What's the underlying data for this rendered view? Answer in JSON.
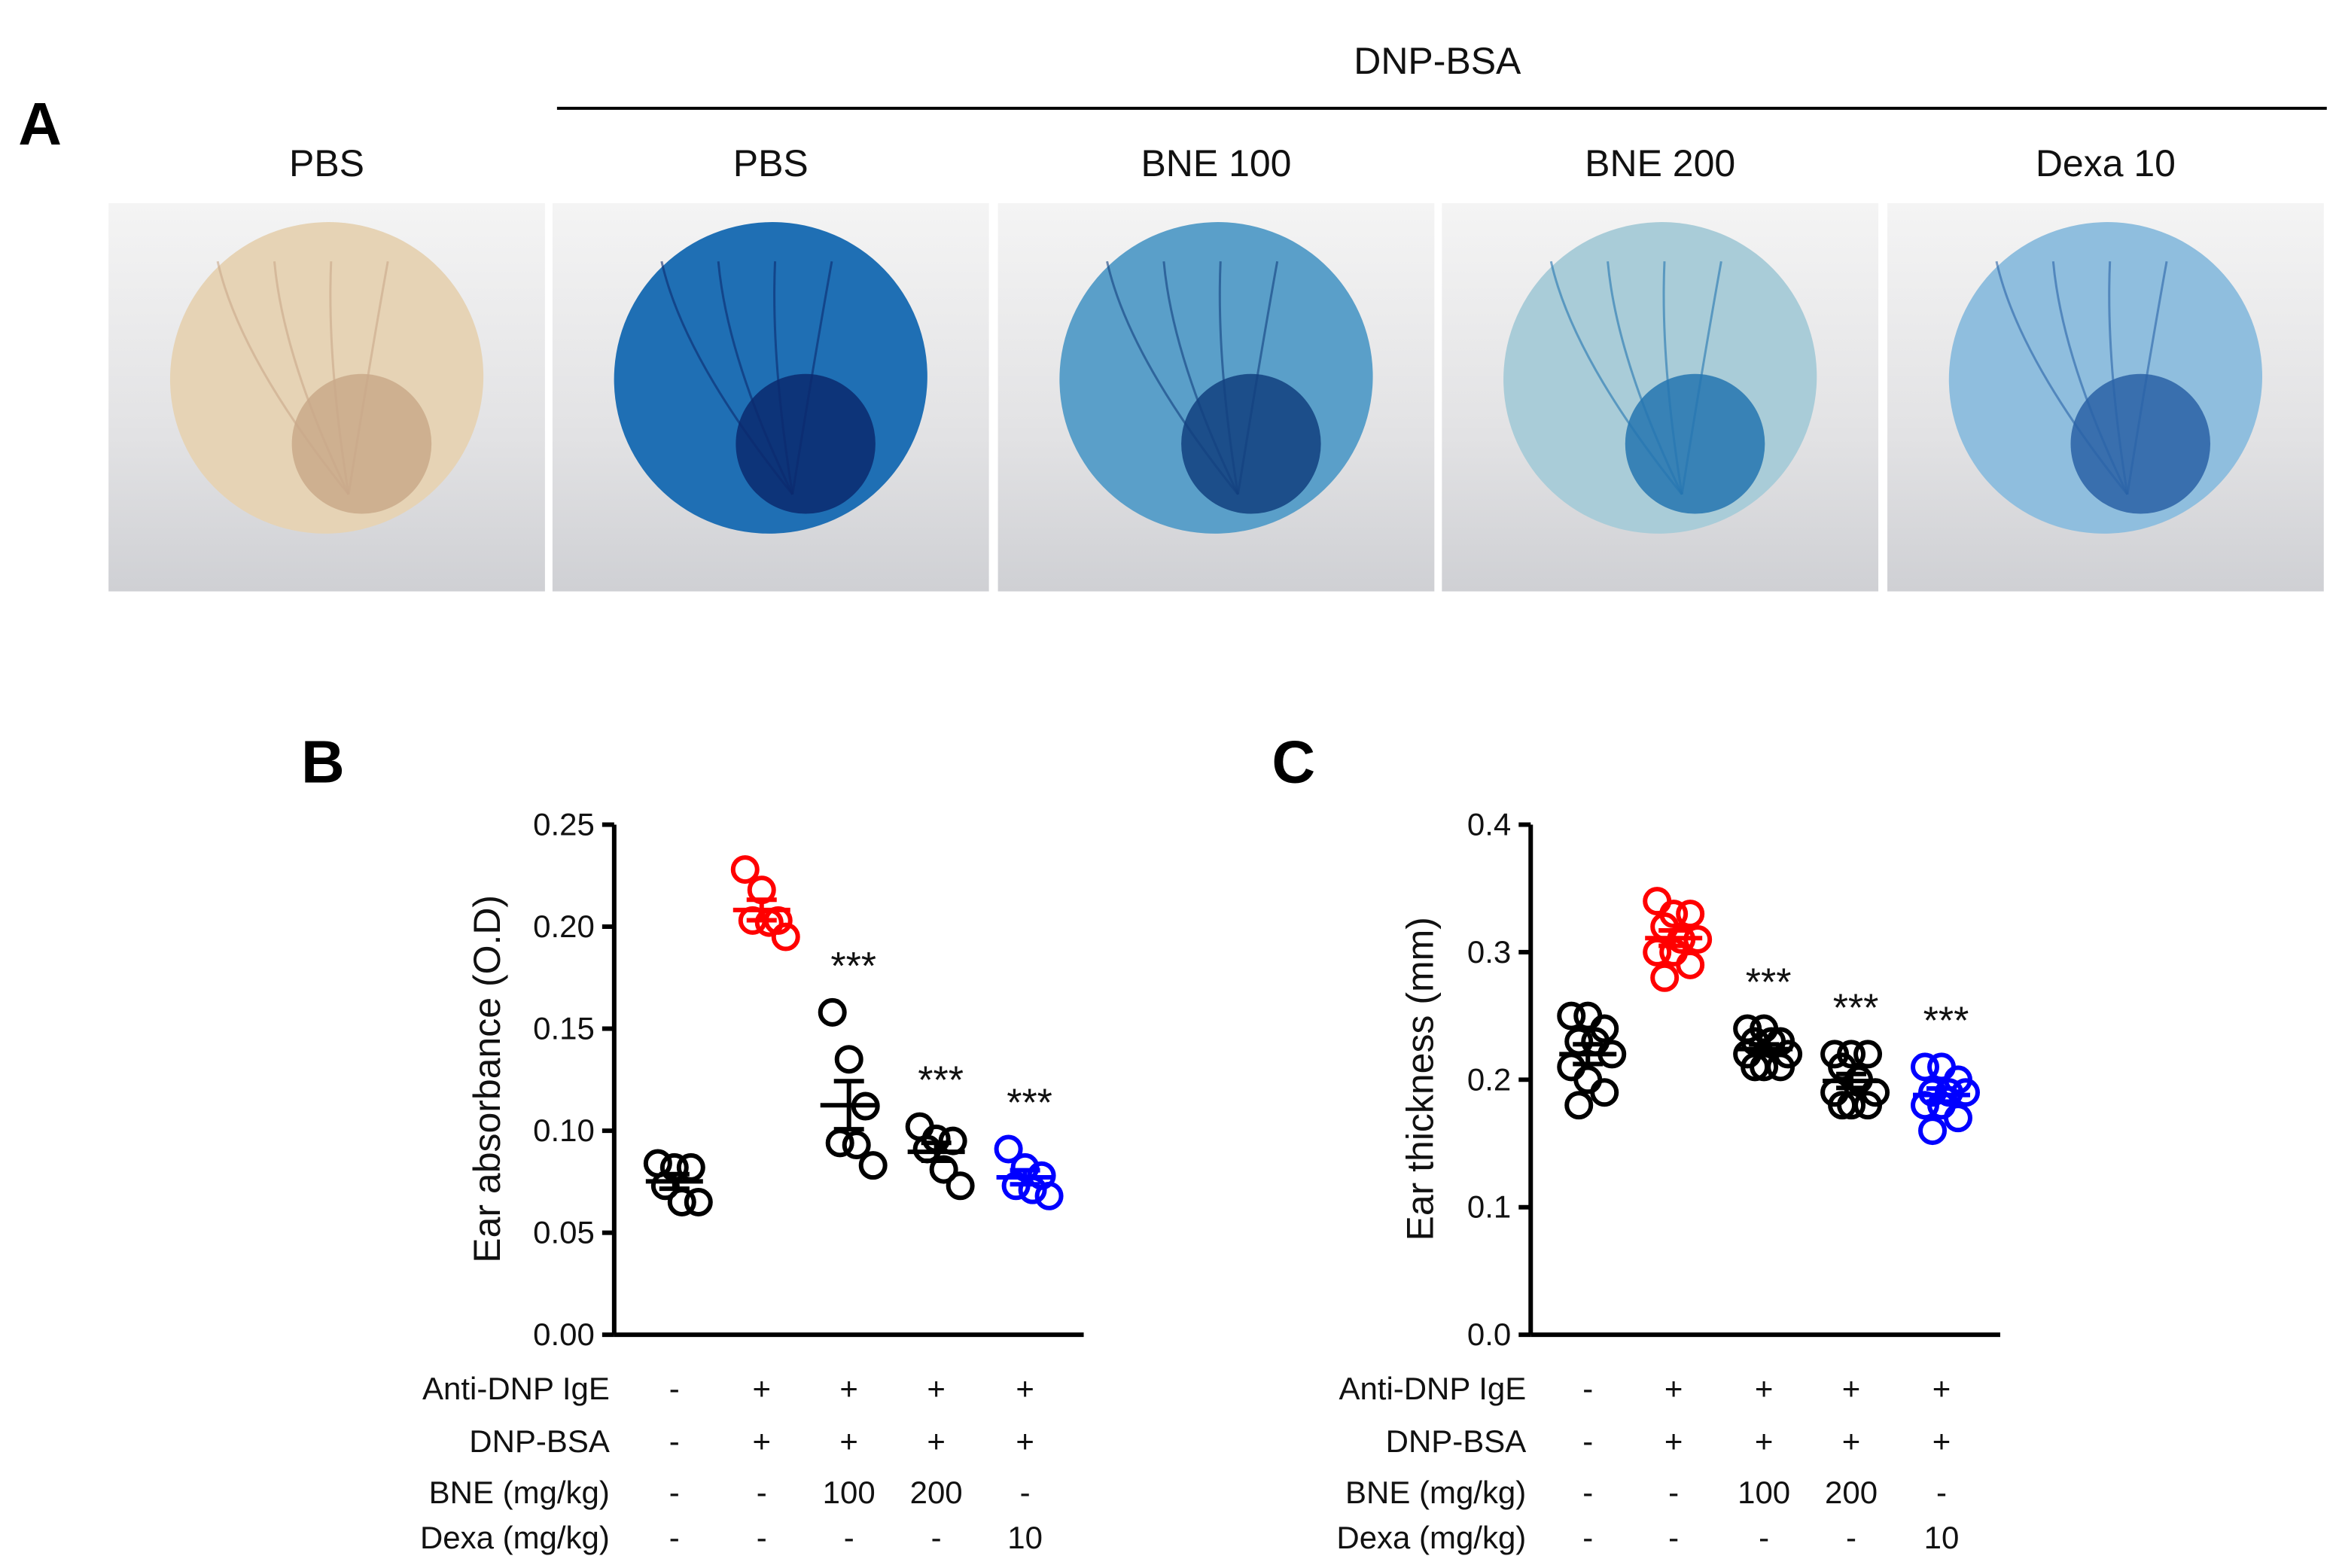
{
  "panel_a": {
    "letter": "A",
    "header": "DNP-BSA",
    "photos": [
      {
        "label": "PBS",
        "ear_color": "#e6d3b5",
        "stain": "#c9a98a"
      },
      {
        "label": "PBS",
        "ear_color": "#1f6fb4",
        "stain": "#0b2a6e"
      },
      {
        "label": "BNE 100",
        "ear_color": "#5a9fc9",
        "stain": "#12407f"
      },
      {
        "label": "BNE 200",
        "ear_color": "#a9ccd8",
        "stain": "#2474b0"
      },
      {
        "label": "Dexa 10",
        "ear_color": "#8fbede",
        "stain": "#2a62a6"
      }
    ]
  },
  "chart_data": [
    {
      "panel": "B",
      "type": "scatter",
      "ylabel": "Ear absorbance (O.D)",
      "ylim": [
        0,
        0.25
      ],
      "yticks": [
        "0.00",
        "0.05",
        "0.10",
        "0.15",
        "0.20",
        "0.25"
      ],
      "ytick_values": [
        0,
        0.05,
        0.1,
        0.15,
        0.2,
        0.25
      ],
      "groups": [
        {
          "color": "#000000",
          "annotation": "",
          "values": [
            0.084,
            0.082,
            0.082,
            0.073,
            0.065,
            0.065
          ]
        },
        {
          "color": "#ff0000",
          "annotation": "",
          "values": [
            0.228,
            0.218,
            0.203,
            0.203,
            0.202,
            0.195
          ]
        },
        {
          "color": "#000000",
          "annotation": "***",
          "values": [
            0.158,
            0.135,
            0.112,
            0.094,
            0.093,
            0.083
          ]
        },
        {
          "color": "#000000",
          "annotation": "***",
          "values": [
            0.102,
            0.096,
            0.095,
            0.091,
            0.081,
            0.073
          ]
        },
        {
          "color": "#0000ff",
          "annotation": "***",
          "values": [
            0.091,
            0.082,
            0.078,
            0.073,
            0.071,
            0.068
          ]
        }
      ],
      "conditions": [
        {
          "label": "Anti-DNP IgE",
          "values": [
            "-",
            "+",
            "+",
            "+",
            "+"
          ]
        },
        {
          "label": "DNP-BSA",
          "values": [
            "-",
            "+",
            "+",
            "+",
            "+"
          ]
        },
        {
          "label": "BNE (mg/kg)",
          "values": [
            "-",
            "-",
            "100",
            "200",
            "-"
          ]
        },
        {
          "label": "Dexa (mg/kg)",
          "values": [
            "-",
            "-",
            "-",
            "-",
            "10"
          ]
        }
      ]
    },
    {
      "panel": "C",
      "type": "scatter",
      "ylabel": "Ear thickness (mm)",
      "ylim": [
        0,
        0.4
      ],
      "yticks": [
        "0.0",
        "0.1",
        "0.2",
        "0.3",
        "0.4"
      ],
      "ytick_values": [
        0,
        0.1,
        0.2,
        0.3,
        0.4
      ],
      "groups": [
        {
          "color": "#000000",
          "annotation": "",
          "values": [
            0.25,
            0.25,
            0.24,
            0.23,
            0.23,
            0.22,
            0.21,
            0.2,
            0.19,
            0.18
          ]
        },
        {
          "color": "#ff0000",
          "annotation": "",
          "values": [
            0.34,
            0.33,
            0.33,
            0.32,
            0.31,
            0.31,
            0.3,
            0.3,
            0.29,
            0.28
          ]
        },
        {
          "color": "#000000",
          "annotation": "***",
          "values": [
            0.24,
            0.24,
            0.23,
            0.23,
            0.23,
            0.22,
            0.22,
            0.21,
            0.21,
            0.21
          ]
        },
        {
          "color": "#000000",
          "annotation": "***",
          "values": [
            0.22,
            0.22,
            0.22,
            0.21,
            0.2,
            0.19,
            0.19,
            0.18,
            0.18,
            0.18
          ]
        },
        {
          "color": "#0000ff",
          "annotation": "***",
          "values": [
            0.21,
            0.21,
            0.2,
            0.19,
            0.19,
            0.19,
            0.18,
            0.18,
            0.17,
            0.16
          ]
        }
      ],
      "conditions": [
        {
          "label": "Anti-DNP IgE",
          "values": [
            "-",
            "+",
            "+",
            "+",
            "+"
          ]
        },
        {
          "label": "DNP-BSA",
          "values": [
            "-",
            "+",
            "+",
            "+",
            "+"
          ]
        },
        {
          "label": "BNE (mg/kg)",
          "values": [
            "-",
            "-",
            "100",
            "200",
            "-"
          ]
        },
        {
          "label": "Dexa (mg/kg)",
          "values": [
            "-",
            "-",
            "-",
            "-",
            "10"
          ]
        }
      ]
    }
  ]
}
